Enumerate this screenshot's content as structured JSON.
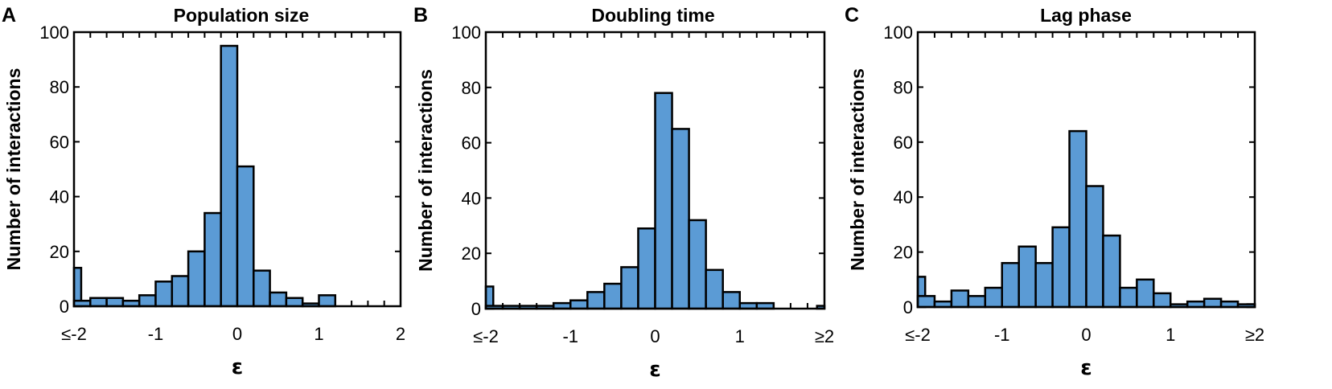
{
  "chart_data": [
    {
      "type": "bar",
      "panel_label": "A",
      "title": "Population size",
      "xlabel": "ε",
      "ylabel": "Number of interactions",
      "xlim": [
        -2,
        2
      ],
      "ylim": [
        0,
        100
      ],
      "bin_width": 0.2,
      "x_ticks": [
        -2,
        -1,
        0,
        1,
        2
      ],
      "x_tick_labels": [
        "≤-2",
        "-1",
        "0",
        "1",
        "2"
      ],
      "y_ticks": [
        0,
        20,
        40,
        60,
        80,
        100
      ],
      "y_tick_labels": [
        "0",
        "20",
        "40",
        "60",
        "80",
        "100"
      ],
      "bin_starts": [
        -2.0,
        -1.8,
        -1.6,
        -1.4,
        -1.2,
        -1.0,
        -0.8,
        -0.6,
        -0.4,
        -0.2,
        0.0,
        0.2,
        0.4,
        0.6,
        0.8,
        1.0,
        1.2,
        1.4,
        1.6,
        1.8
      ],
      "values": [
        2,
        3,
        3,
        2,
        4,
        9,
        11,
        20,
        34,
        95,
        51,
        13,
        5,
        3,
        1,
        4,
        0,
        0,
        0,
        0
      ],
      "edge_bar": {
        "side": "left",
        "value": 14
      },
      "grid": false
    },
    {
      "type": "bar",
      "panel_label": "B",
      "title": "Doubling time",
      "xlabel": "ε",
      "ylabel": "Number of interactions",
      "xlim": [
        -2,
        2
      ],
      "ylim": [
        0,
        100
      ],
      "bin_width": 0.2,
      "x_ticks": [
        -2,
        -1,
        0,
        1,
        2
      ],
      "x_tick_labels": [
        "≤-2",
        "-1",
        "0",
        "1",
        "≥2"
      ],
      "y_ticks": [
        0,
        20,
        40,
        60,
        80,
        100
      ],
      "y_tick_labels": [
        "0",
        "20",
        "40",
        "60",
        "80",
        "100"
      ],
      "bin_starts": [
        -2.0,
        -1.8,
        -1.6,
        -1.4,
        -1.2,
        -1.0,
        -0.8,
        -0.6,
        -0.4,
        -0.2,
        0.0,
        0.2,
        0.4,
        0.6,
        0.8,
        1.0,
        1.2,
        1.4,
        1.6,
        1.8
      ],
      "values": [
        1,
        1,
        1,
        1,
        2,
        3,
        6,
        9,
        15,
        29,
        78,
        65,
        32,
        14,
        6,
        2,
        2,
        0,
        0,
        0
      ],
      "edge_bar": {
        "side": "both",
        "left_value": 8,
        "right_value": 1
      },
      "grid": false
    },
    {
      "type": "bar",
      "panel_label": "C",
      "title": "Lag phase",
      "xlabel": "ε",
      "ylabel": "Number of interactions",
      "xlim": [
        -2,
        2
      ],
      "ylim": [
        0,
        100
      ],
      "bin_width": 0.2,
      "x_ticks": [
        -2,
        -1,
        0,
        1,
        2
      ],
      "x_tick_labels": [
        "≤-2",
        "-1",
        "0",
        "1",
        "≥2"
      ],
      "y_ticks": [
        0,
        20,
        40,
        60,
        80,
        100
      ],
      "y_tick_labels": [
        "0",
        "20",
        "40",
        "60",
        "80",
        "100"
      ],
      "bin_starts": [
        -2.0,
        -1.8,
        -1.6,
        -1.4,
        -1.2,
        -1.0,
        -0.8,
        -0.6,
        -0.4,
        -0.2,
        0.0,
        0.2,
        0.4,
        0.6,
        0.8,
        1.0,
        1.2,
        1.4,
        1.6,
        1.8
      ],
      "values": [
        4,
        2,
        6,
        4,
        7,
        16,
        22,
        16,
        29,
        64,
        44,
        26,
        7,
        10,
        5,
        1,
        2,
        3,
        2,
        1
      ],
      "edge_bar": {
        "side": "both",
        "left_value": 11,
        "right_value": 1
      },
      "grid": false
    }
  ]
}
